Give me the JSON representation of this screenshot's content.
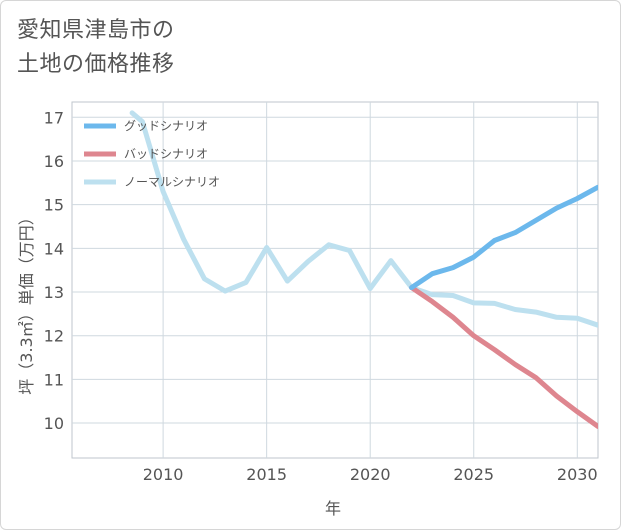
{
  "title_lines": [
    "愛知県津島市の",
    "土地の価格推移"
  ],
  "chart_data": {
    "type": "line",
    "xlabel": "年",
    "ylabel": "坪（3.3㎡）単価（万円）",
    "xlim": [
      2005.6,
      2031
    ],
    "ylim": [
      9.2,
      17.35
    ],
    "x_ticks": [
      2010,
      2015,
      2020,
      2025,
      2030
    ],
    "y_ticks": [
      10,
      11,
      12,
      13,
      14,
      15,
      16,
      17
    ],
    "grid": true,
    "legend_position": "top-left",
    "series": [
      {
        "name": "グッドシナリオ",
        "color": "#6cb8ec",
        "x": [
          2022,
          2023,
          2024,
          2025,
          2026,
          2027,
          2028,
          2029,
          2030,
          2031
        ],
        "y": [
          13.1,
          13.42,
          13.56,
          13.8,
          14.18,
          14.36,
          14.64,
          14.92,
          15.14,
          15.4
        ]
      },
      {
        "name": "バッドシナリオ",
        "color": "#de868f",
        "x": [
          2022,
          2023,
          2024,
          2025,
          2026,
          2027,
          2028,
          2029,
          2030,
          2031
        ],
        "y": [
          13.1,
          12.78,
          12.42,
          12.0,
          11.68,
          11.34,
          11.04,
          10.62,
          10.26,
          9.92
        ]
      },
      {
        "name": "ノーマルシナリオ",
        "color": "#bde0ef",
        "x": [
          2008.5,
          2009,
          2010,
          2011,
          2012,
          2013,
          2014,
          2015,
          2016,
          2017,
          2018,
          2019,
          2020,
          2021,
          2022,
          2023,
          2024,
          2025,
          2026,
          2027,
          2028,
          2029,
          2030,
          2031
        ],
        "y": [
          17.1,
          16.9,
          15.3,
          14.2,
          13.3,
          13.02,
          13.22,
          14.02,
          13.25,
          13.7,
          14.08,
          13.95,
          13.08,
          13.72,
          13.1,
          12.94,
          12.92,
          12.75,
          12.74,
          12.6,
          12.54,
          12.42,
          12.4,
          12.24
        ]
      }
    ]
  }
}
